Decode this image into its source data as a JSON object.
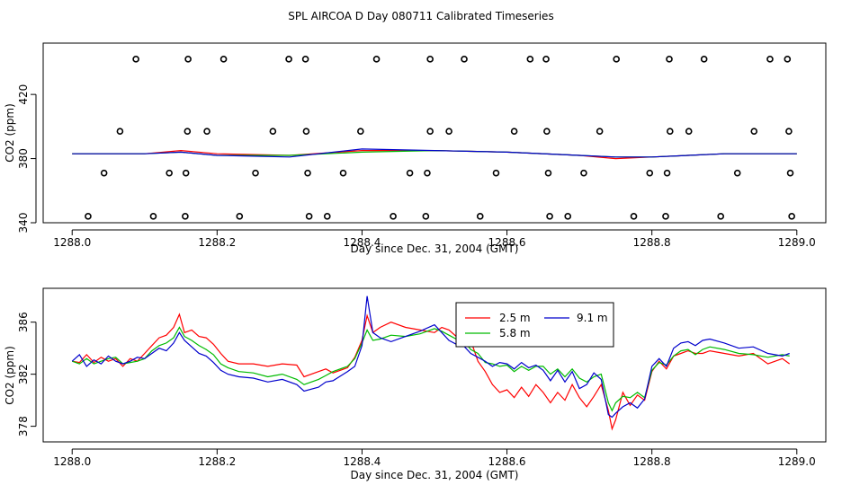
{
  "title": "SPL AIRCOA D  Day 080711  Calibrated Timeseries",
  "chart_data": [
    {
      "type": "line",
      "panel": "top",
      "xlabel": "Day since Dec. 31, 2004 (GMT)",
      "ylabel": "CO2 (ppm)",
      "xlim": [
        1287.96,
        1289.04
      ],
      "ylim": [
        340,
        452
      ],
      "xticks": [
        1288.0,
        1288.2,
        1288.4,
        1288.6,
        1288.8,
        1289.0
      ],
      "xtick_labels": [
        "1288.0",
        "1288.2",
        "1288.4",
        "1288.6",
        "1288.8",
        "1289.0"
      ],
      "yticks": [
        340,
        380,
        420
      ],
      "ytick_labels": [
        "340",
        "380",
        "420"
      ],
      "series": [
        {
          "name": "2.5 m",
          "color": "#ff0000",
          "x": [
            1288.0,
            1288.1,
            1288.15,
            1288.2,
            1288.3,
            1288.4,
            1288.5,
            1288.6,
            1288.7,
            1288.75,
            1288.8,
            1288.9,
            1289.0
          ],
          "values": [
            383,
            383,
            385,
            383,
            382,
            385,
            385,
            384,
            382,
            380,
            381,
            383,
            383
          ]
        },
        {
          "name": "5.8 m",
          "color": "#00bb00",
          "x": [
            1288.0,
            1288.1,
            1288.15,
            1288.2,
            1288.3,
            1288.4,
            1288.5,
            1288.6,
            1288.7,
            1288.75,
            1288.8,
            1288.9,
            1289.0
          ],
          "values": [
            383,
            383,
            384,
            382,
            382,
            384,
            385,
            384,
            382,
            381,
            381,
            383,
            383
          ]
        },
        {
          "name": "9.1 m",
          "color": "#0000cc",
          "x": [
            1288.0,
            1288.1,
            1288.15,
            1288.2,
            1288.3,
            1288.4,
            1288.5,
            1288.6,
            1288.7,
            1288.75,
            1288.8,
            1288.9,
            1289.0
          ],
          "values": [
            383,
            383,
            384,
            382,
            381,
            386,
            385,
            384,
            382,
            381,
            381,
            383,
            383
          ]
        }
      ],
      "points": [
        {
          "x": 1288.088,
          "y": 442
        },
        {
          "x": 1288.16,
          "y": 442
        },
        {
          "x": 1288.209,
          "y": 442
        },
        {
          "x": 1288.299,
          "y": 442
        },
        {
          "x": 1288.322,
          "y": 442
        },
        {
          "x": 1288.42,
          "y": 442
        },
        {
          "x": 1288.494,
          "y": 442
        },
        {
          "x": 1288.541,
          "y": 442
        },
        {
          "x": 1288.632,
          "y": 442
        },
        {
          "x": 1288.654,
          "y": 442
        },
        {
          "x": 1288.751,
          "y": 442
        },
        {
          "x": 1288.824,
          "y": 442
        },
        {
          "x": 1288.872,
          "y": 442
        },
        {
          "x": 1288.963,
          "y": 442
        },
        {
          "x": 1288.987,
          "y": 442
        },
        {
          "x": 1288.066,
          "y": 397
        },
        {
          "x": 1288.159,
          "y": 397
        },
        {
          "x": 1288.186,
          "y": 397
        },
        {
          "x": 1288.277,
          "y": 397
        },
        {
          "x": 1288.323,
          "y": 397
        },
        {
          "x": 1288.398,
          "y": 397
        },
        {
          "x": 1288.494,
          "y": 397
        },
        {
          "x": 1288.52,
          "y": 397
        },
        {
          "x": 1288.61,
          "y": 397
        },
        {
          "x": 1288.655,
          "y": 397
        },
        {
          "x": 1288.728,
          "y": 397
        },
        {
          "x": 1288.825,
          "y": 397
        },
        {
          "x": 1288.851,
          "y": 397
        },
        {
          "x": 1288.941,
          "y": 397
        },
        {
          "x": 1288.989,
          "y": 397
        },
        {
          "x": 1288.044,
          "y": 371
        },
        {
          "x": 1288.134,
          "y": 371
        },
        {
          "x": 1288.157,
          "y": 371
        },
        {
          "x": 1288.253,
          "y": 371
        },
        {
          "x": 1288.325,
          "y": 371
        },
        {
          "x": 1288.374,
          "y": 371
        },
        {
          "x": 1288.466,
          "y": 371
        },
        {
          "x": 1288.49,
          "y": 371
        },
        {
          "x": 1288.585,
          "y": 371
        },
        {
          "x": 1288.657,
          "y": 371
        },
        {
          "x": 1288.706,
          "y": 371
        },
        {
          "x": 1288.797,
          "y": 371
        },
        {
          "x": 1288.821,
          "y": 371
        },
        {
          "x": 1288.918,
          "y": 371
        },
        {
          "x": 1288.991,
          "y": 371
        },
        {
          "x": 1288.022,
          "y": 344
        },
        {
          "x": 1288.112,
          "y": 344
        },
        {
          "x": 1288.156,
          "y": 344
        },
        {
          "x": 1288.231,
          "y": 344
        },
        {
          "x": 1288.327,
          "y": 344
        },
        {
          "x": 1288.352,
          "y": 344
        },
        {
          "x": 1288.443,
          "y": 344
        },
        {
          "x": 1288.488,
          "y": 344
        },
        {
          "x": 1288.563,
          "y": 344
        },
        {
          "x": 1288.659,
          "y": 344
        },
        {
          "x": 1288.684,
          "y": 344
        },
        {
          "x": 1288.775,
          "y": 344
        },
        {
          "x": 1288.819,
          "y": 344
        },
        {
          "x": 1288.895,
          "y": 344
        },
        {
          "x": 1288.993,
          "y": 344
        }
      ]
    },
    {
      "type": "line",
      "panel": "bottom",
      "xlabel": "Day since Dec. 31, 2004 (GMT)",
      "ylabel": "CO2 (ppm)",
      "xlim": [
        1287.96,
        1289.04
      ],
      "ylim": [
        376.8,
        388.6
      ],
      "xticks": [
        1288.0,
        1288.2,
        1288.4,
        1288.6,
        1288.8,
        1289.0
      ],
      "xtick_labels": [
        "1288.0",
        "1288.2",
        "1288.4",
        "1288.6",
        "1288.8",
        "1289.0"
      ],
      "yticks": [
        378,
        382,
        386
      ],
      "ytick_labels": [
        "378",
        "382",
        "386"
      ],
      "legend": {
        "position": "top-center"
      },
      "series": [
        {
          "name": "2.5 m",
          "color": "#ff0000",
          "x": [
            1288.0,
            1288.01,
            1288.02,
            1288.03,
            1288.04,
            1288.05,
            1288.06,
            1288.07,
            1288.08,
            1288.09,
            1288.1,
            1288.11,
            1288.12,
            1288.13,
            1288.14,
            1288.148,
            1288.155,
            1288.165,
            1288.175,
            1288.185,
            1288.195,
            1288.205,
            1288.215,
            1288.23,
            1288.25,
            1288.27,
            1288.29,
            1288.31,
            1288.32,
            1288.34,
            1288.35,
            1288.36,
            1288.38,
            1288.39,
            1288.4,
            1288.407,
            1288.415,
            1288.425,
            1288.44,
            1288.46,
            1288.48,
            1288.5,
            1288.51,
            1288.52,
            1288.53,
            1288.54,
            1288.55,
            1288.56,
            1288.57,
            1288.58,
            1288.59,
            1288.6,
            1288.61,
            1288.62,
            1288.63,
            1288.64,
            1288.65,
            1288.66,
            1288.67,
            1288.68,
            1288.69,
            1288.7,
            1288.71,
            1288.72,
            1288.73,
            1288.74,
            1288.745,
            1288.75,
            1288.76,
            1288.77,
            1288.78,
            1288.79,
            1288.8,
            1288.81,
            1288.82,
            1288.83,
            1288.84,
            1288.85,
            1288.86,
            1288.87,
            1288.88,
            1288.9,
            1288.92,
            1288.94,
            1288.96,
            1288.98,
            1288.99
          ],
          "values": [
            383.0,
            382.9,
            383.5,
            382.9,
            383.3,
            383.0,
            383.2,
            382.6,
            383.2,
            383.0,
            383.6,
            384.2,
            384.8,
            385.0,
            385.6,
            386.6,
            385.2,
            385.4,
            384.9,
            384.8,
            384.3,
            383.6,
            383.0,
            382.8,
            382.8,
            382.6,
            382.8,
            382.7,
            381.8,
            382.2,
            382.4,
            382.1,
            382.5,
            383.3,
            384.6,
            386.5,
            385.2,
            385.6,
            386.0,
            385.6,
            385.4,
            385.2,
            385.6,
            385.4,
            384.9,
            385.0,
            384.6,
            383.0,
            382.2,
            381.2,
            380.6,
            380.8,
            380.2,
            381.0,
            380.3,
            381.2,
            380.6,
            379.8,
            380.6,
            380.0,
            381.2,
            380.2,
            379.5,
            380.3,
            381.2,
            379.2,
            377.8,
            378.5,
            380.6,
            379.6,
            380.4,
            380.0,
            382.2,
            383.0,
            382.4,
            383.4,
            383.6,
            383.8,
            383.6,
            383.6,
            383.8,
            383.6,
            383.4,
            383.6,
            382.8,
            383.2,
            382.8
          ]
        },
        {
          "name": "5.8 m",
          "color": "#00bb00",
          "x": [
            1288.0,
            1288.01,
            1288.02,
            1288.03,
            1288.04,
            1288.05,
            1288.06,
            1288.07,
            1288.08,
            1288.09,
            1288.1,
            1288.11,
            1288.12,
            1288.13,
            1288.14,
            1288.148,
            1288.155,
            1288.165,
            1288.175,
            1288.185,
            1288.195,
            1288.205,
            1288.215,
            1288.23,
            1288.25,
            1288.27,
            1288.29,
            1288.31,
            1288.32,
            1288.34,
            1288.35,
            1288.36,
            1288.38,
            1288.39,
            1288.4,
            1288.407,
            1288.415,
            1288.425,
            1288.44,
            1288.46,
            1288.48,
            1288.5,
            1288.51,
            1288.52,
            1288.53,
            1288.54,
            1288.55,
            1288.56,
            1288.57,
            1288.58,
            1288.59,
            1288.6,
            1288.61,
            1288.62,
            1288.63,
            1288.64,
            1288.65,
            1288.66,
            1288.67,
            1288.68,
            1288.69,
            1288.7,
            1288.71,
            1288.72,
            1288.73,
            1288.74,
            1288.745,
            1288.75,
            1288.76,
            1288.77,
            1288.78,
            1288.79,
            1288.8,
            1288.81,
            1288.82,
            1288.83,
            1288.84,
            1288.85,
            1288.86,
            1288.87,
            1288.88,
            1288.9,
            1288.92,
            1288.94,
            1288.96,
            1288.98,
            1288.99
          ],
          "values": [
            383.0,
            382.8,
            383.2,
            382.8,
            383.0,
            383.2,
            383.3,
            382.8,
            382.9,
            383.0,
            383.2,
            383.8,
            384.2,
            384.4,
            384.8,
            385.6,
            384.9,
            384.6,
            384.2,
            383.9,
            383.5,
            382.8,
            382.5,
            382.2,
            382.1,
            381.8,
            382.0,
            381.6,
            381.2,
            381.6,
            381.9,
            382.2,
            382.6,
            383.2,
            384.4,
            385.4,
            384.6,
            384.7,
            385.0,
            384.9,
            385.1,
            385.5,
            385.3,
            385.0,
            384.7,
            384.6,
            383.9,
            383.6,
            382.9,
            382.8,
            382.6,
            382.7,
            382.2,
            382.6,
            382.3,
            382.6,
            382.6,
            382.0,
            382.4,
            381.8,
            382.4,
            381.7,
            381.4,
            381.8,
            382.0,
            379.8,
            379.2,
            379.8,
            380.3,
            380.2,
            380.6,
            380.2,
            382.3,
            382.9,
            382.7,
            383.4,
            383.8,
            383.9,
            383.5,
            383.9,
            384.1,
            383.9,
            383.6,
            383.5,
            383.3,
            383.5,
            383.4
          ]
        },
        {
          "name": "9.1 m",
          "color": "#0000cc",
          "x": [
            1288.0,
            1288.01,
            1288.02,
            1288.03,
            1288.04,
            1288.05,
            1288.06,
            1288.07,
            1288.08,
            1288.09,
            1288.1,
            1288.11,
            1288.12,
            1288.13,
            1288.14,
            1288.148,
            1288.155,
            1288.165,
            1288.175,
            1288.185,
            1288.195,
            1288.205,
            1288.215,
            1288.23,
            1288.25,
            1288.27,
            1288.29,
            1288.31,
            1288.32,
            1288.34,
            1288.35,
            1288.36,
            1288.38,
            1288.39,
            1288.4,
            1288.407,
            1288.415,
            1288.425,
            1288.44,
            1288.46,
            1288.48,
            1288.5,
            1288.51,
            1288.52,
            1288.53,
            1288.54,
            1288.55,
            1288.56,
            1288.57,
            1288.58,
            1288.59,
            1288.6,
            1288.61,
            1288.62,
            1288.63,
            1288.64,
            1288.65,
            1288.66,
            1288.67,
            1288.68,
            1288.69,
            1288.7,
            1288.71,
            1288.72,
            1288.73,
            1288.74,
            1288.745,
            1288.75,
            1288.76,
            1288.77,
            1288.78,
            1288.79,
            1288.8,
            1288.81,
            1288.82,
            1288.83,
            1288.84,
            1288.85,
            1288.86,
            1288.87,
            1288.88,
            1288.9,
            1288.92,
            1288.94,
            1288.96,
            1288.98,
            1288.99
          ],
          "values": [
            383.0,
            383.5,
            382.6,
            383.1,
            382.8,
            383.4,
            383.0,
            382.8,
            383.0,
            383.3,
            383.2,
            383.6,
            384.0,
            383.8,
            384.4,
            385.2,
            384.6,
            384.1,
            383.6,
            383.4,
            382.9,
            382.3,
            382.0,
            381.8,
            381.7,
            381.4,
            381.6,
            381.2,
            380.7,
            381.0,
            381.4,
            381.5,
            382.2,
            382.6,
            384.2,
            388.0,
            385.2,
            384.8,
            384.5,
            384.9,
            385.3,
            385.8,
            385.2,
            384.6,
            384.3,
            384.2,
            383.6,
            383.3,
            383.0,
            382.6,
            382.9,
            382.8,
            382.4,
            382.9,
            382.5,
            382.7,
            382.3,
            381.5,
            382.3,
            381.4,
            382.2,
            380.9,
            381.2,
            382.1,
            381.6,
            378.9,
            378.7,
            379.0,
            379.5,
            379.8,
            379.4,
            380.1,
            382.6,
            383.2,
            382.6,
            384.0,
            384.4,
            384.5,
            384.2,
            384.6,
            384.7,
            384.4,
            384.0,
            384.1,
            383.6,
            383.4,
            383.6
          ]
        }
      ]
    }
  ]
}
